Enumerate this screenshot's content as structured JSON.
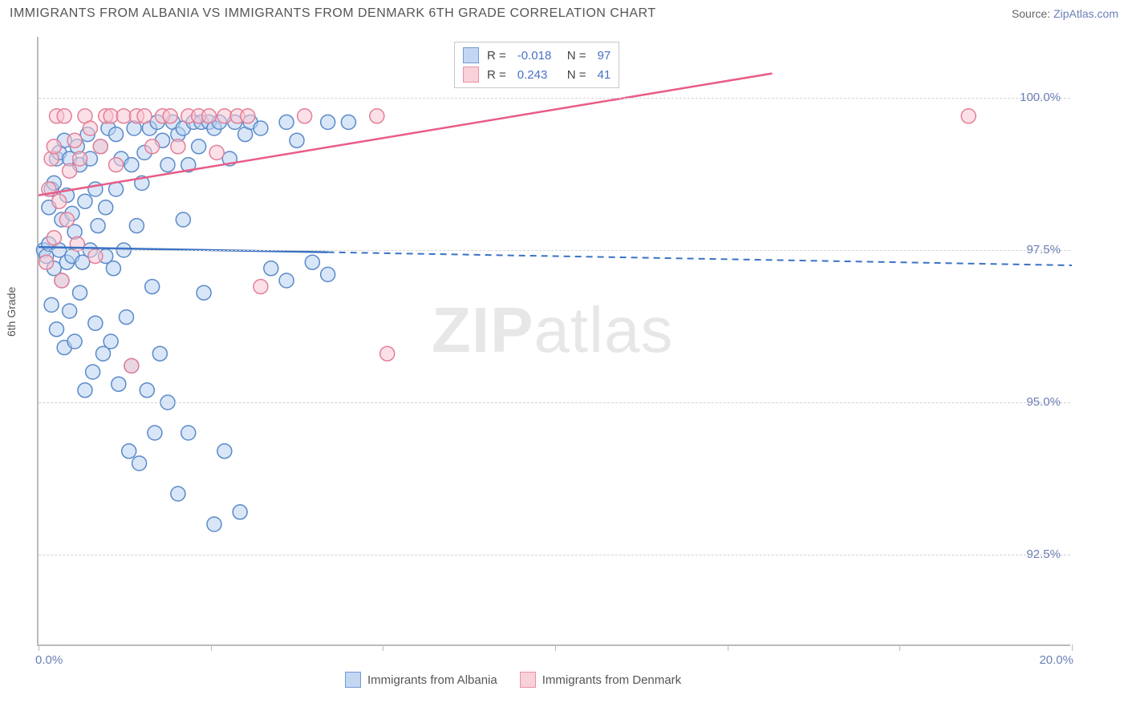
{
  "header": {
    "title": "IMMIGRANTS FROM ALBANIA VS IMMIGRANTS FROM DENMARK 6TH GRADE CORRELATION CHART",
    "source_prefix": "Source: ",
    "source_link": "ZipAtlas.com"
  },
  "chart": {
    "type": "scatter",
    "ylabel": "6th Grade",
    "xlim": [
      0.0,
      20.0
    ],
    "ylim": [
      91.0,
      101.0
    ],
    "ytick_values": [
      92.5,
      95.0,
      97.5,
      100.0
    ],
    "ytick_labels": [
      "92.5%",
      "95.0%",
      "97.5%",
      "100.0%"
    ],
    "xtick_label_left": "0.0%",
    "xtick_label_right": "20.0%",
    "xtick_positions_pct": [
      0,
      16.7,
      33.3,
      50,
      66.7,
      83.3,
      100
    ],
    "grid_color": "#d4d4d4",
    "axis_color": "#bbbbbb",
    "background_color": "#ffffff",
    "watermark": "ZIPatlas"
  },
  "series": {
    "albania": {
      "label": "Immigrants from Albania",
      "fill": "#b9d1f0",
      "stroke": "#5a8ac9",
      "line_color": "#3b72c4",
      "marker_radius": 9,
      "R": "-0.018",
      "N": "97",
      "trend": {
        "x1": 0.0,
        "y1": 97.55,
        "x2": 20.0,
        "y2": 97.25,
        "solid_until_x": 5.6
      },
      "points": [
        [
          0.1,
          97.5
        ],
        [
          0.15,
          97.4
        ],
        [
          0.2,
          97.6
        ],
        [
          0.2,
          98.2
        ],
        [
          0.25,
          96.6
        ],
        [
          0.25,
          98.5
        ],
        [
          0.3,
          97.2
        ],
        [
          0.3,
          98.6
        ],
        [
          0.35,
          99.0
        ],
        [
          0.35,
          96.2
        ],
        [
          0.4,
          97.5
        ],
        [
          0.4,
          99.1
        ],
        [
          0.45,
          98.0
        ],
        [
          0.45,
          97.0
        ],
        [
          0.5,
          99.3
        ],
        [
          0.5,
          95.9
        ],
        [
          0.55,
          97.3
        ],
        [
          0.55,
          98.4
        ],
        [
          0.6,
          99.0
        ],
        [
          0.6,
          96.5
        ],
        [
          0.65,
          98.1
        ],
        [
          0.65,
          97.4
        ],
        [
          0.7,
          97.8
        ],
        [
          0.7,
          96.0
        ],
        [
          0.75,
          99.2
        ],
        [
          0.8,
          98.9
        ],
        [
          0.8,
          96.8
        ],
        [
          0.85,
          97.3
        ],
        [
          0.9,
          98.3
        ],
        [
          0.9,
          95.2
        ],
        [
          0.95,
          99.4
        ],
        [
          1.0,
          97.5
        ],
        [
          1.0,
          99.0
        ],
        [
          1.05,
          95.5
        ],
        [
          1.1,
          98.5
        ],
        [
          1.1,
          96.3
        ],
        [
          1.15,
          97.9
        ],
        [
          1.2,
          99.2
        ],
        [
          1.25,
          95.8
        ],
        [
          1.3,
          97.4
        ],
        [
          1.3,
          98.2
        ],
        [
          1.35,
          99.5
        ],
        [
          1.4,
          96.0
        ],
        [
          1.45,
          97.2
        ],
        [
          1.5,
          99.4
        ],
        [
          1.5,
          98.5
        ],
        [
          1.55,
          95.3
        ],
        [
          1.6,
          99.0
        ],
        [
          1.65,
          97.5
        ],
        [
          1.7,
          96.4
        ],
        [
          1.75,
          94.2
        ],
        [
          1.8,
          98.9
        ],
        [
          1.8,
          95.6
        ],
        [
          1.85,
          99.5
        ],
        [
          1.9,
          97.9
        ],
        [
          1.95,
          94.0
        ],
        [
          2.0,
          98.6
        ],
        [
          2.05,
          99.1
        ],
        [
          2.1,
          95.2
        ],
        [
          2.15,
          99.5
        ],
        [
          2.2,
          96.9
        ],
        [
          2.25,
          94.5
        ],
        [
          2.3,
          99.6
        ],
        [
          2.35,
          95.8
        ],
        [
          2.4,
          99.3
        ],
        [
          2.5,
          98.9
        ],
        [
          2.5,
          95.0
        ],
        [
          2.6,
          99.6
        ],
        [
          2.7,
          99.4
        ],
        [
          2.7,
          93.5
        ],
        [
          2.8,
          98.0
        ],
        [
          2.8,
          99.5
        ],
        [
          2.9,
          98.9
        ],
        [
          2.9,
          94.5
        ],
        [
          3.0,
          99.6
        ],
        [
          3.1,
          99.2
        ],
        [
          3.15,
          99.6
        ],
        [
          3.2,
          96.8
        ],
        [
          3.3,
          99.6
        ],
        [
          3.4,
          93.0
        ],
        [
          3.4,
          99.5
        ],
        [
          3.5,
          99.6
        ],
        [
          3.6,
          94.2
        ],
        [
          3.7,
          99.0
        ],
        [
          3.8,
          99.6
        ],
        [
          3.9,
          93.2
        ],
        [
          4.0,
          99.4
        ],
        [
          4.1,
          99.6
        ],
        [
          4.3,
          99.5
        ],
        [
          4.5,
          97.2
        ],
        [
          4.8,
          99.6
        ],
        [
          4.8,
          97.0
        ],
        [
          5.0,
          99.3
        ],
        [
          5.3,
          97.3
        ],
        [
          5.6,
          99.6
        ],
        [
          5.6,
          97.1
        ],
        [
          6.0,
          99.6
        ]
      ]
    },
    "denmark": {
      "label": "Immigrants from Denmark",
      "fill": "#f7c9d3",
      "stroke": "#e37f99",
      "line_color": "#e85c86",
      "marker_radius": 9,
      "R": "0.243",
      "N": "41",
      "trend": {
        "x1": 0.0,
        "y1": 98.4,
        "x2": 14.2,
        "y2": 100.4,
        "solid_until_x": 14.2
      },
      "points": [
        [
          0.15,
          97.3
        ],
        [
          0.2,
          98.5
        ],
        [
          0.25,
          99.0
        ],
        [
          0.3,
          97.7
        ],
        [
          0.3,
          99.2
        ],
        [
          0.35,
          99.7
        ],
        [
          0.4,
          98.3
        ],
        [
          0.45,
          97.0
        ],
        [
          0.5,
          99.7
        ],
        [
          0.55,
          98.0
        ],
        [
          0.6,
          98.8
        ],
        [
          0.7,
          99.3
        ],
        [
          0.75,
          97.6
        ],
        [
          0.8,
          99.0
        ],
        [
          0.9,
          99.7
        ],
        [
          1.0,
          99.5
        ],
        [
          1.1,
          97.4
        ],
        [
          1.2,
          99.2
        ],
        [
          1.3,
          99.7
        ],
        [
          1.4,
          99.7
        ],
        [
          1.5,
          98.9
        ],
        [
          1.65,
          99.7
        ],
        [
          1.8,
          95.6
        ],
        [
          1.9,
          99.7
        ],
        [
          2.05,
          99.7
        ],
        [
          2.2,
          99.2
        ],
        [
          2.4,
          99.7
        ],
        [
          2.55,
          99.7
        ],
        [
          2.7,
          99.2
        ],
        [
          2.9,
          99.7
        ],
        [
          3.1,
          99.7
        ],
        [
          3.3,
          99.7
        ],
        [
          3.45,
          99.1
        ],
        [
          3.6,
          99.7
        ],
        [
          3.85,
          99.7
        ],
        [
          4.05,
          99.7
        ],
        [
          4.3,
          96.9
        ],
        [
          5.15,
          99.7
        ],
        [
          6.55,
          99.7
        ],
        [
          6.75,
          95.8
        ],
        [
          18.0,
          99.7
        ]
      ]
    }
  },
  "legend_top": {
    "rows": [
      {
        "swatch_fill": "#b9d1f0",
        "swatch_stroke": "#5a8ac9",
        "R_label": "R =",
        "R_val": "-0.018",
        "N_label": "N =",
        "N_val": "97"
      },
      {
        "swatch_fill": "#f7c9d3",
        "swatch_stroke": "#e37f99",
        "R_label": "R =",
        "R_val": " 0.243",
        "N_label": "N =",
        "N_val": "41"
      }
    ]
  }
}
